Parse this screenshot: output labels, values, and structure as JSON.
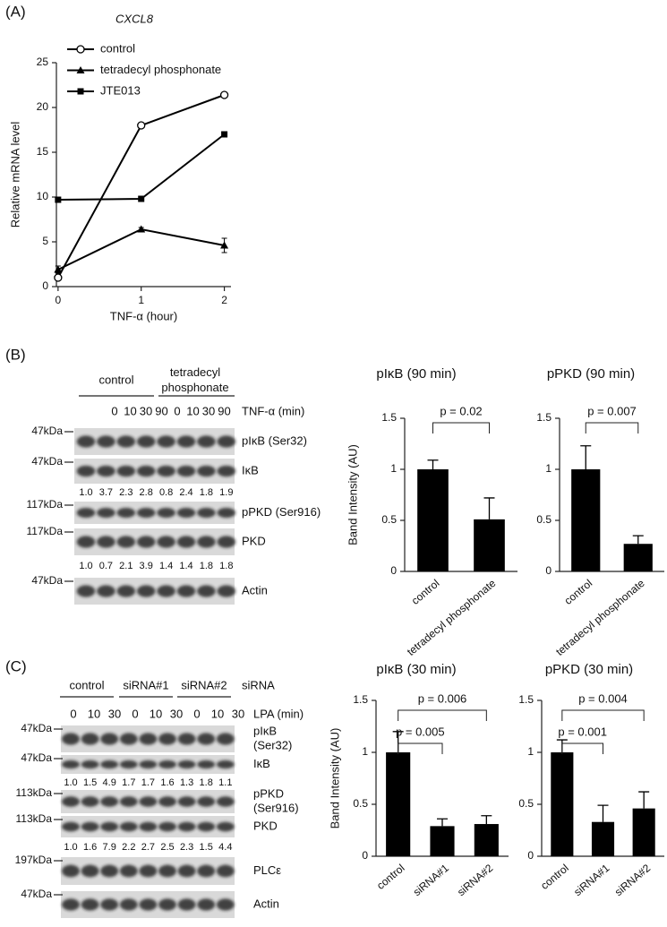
{
  "panels": [
    "(A)",
    "(B)",
    "(C)"
  ],
  "chart_data": [
    {
      "type": "line",
      "title": "CXCL8",
      "x": [
        0,
        1,
        2
      ],
      "xlim": [
        -0.02,
        2.08
      ],
      "xticks": [
        0,
        1,
        2
      ],
      "ylim": [
        0,
        25
      ],
      "yticks": [
        0,
        5,
        10,
        15,
        20,
        25
      ],
      "xlabel": "TNF-α (hour)",
      "ylabel": "Relative mRNA level",
      "legend": "upper left",
      "series": [
        {
          "name": "control",
          "color": "#000000",
          "marker": "circle-open",
          "values": [
            1.0,
            18.0,
            21.4
          ],
          "errors": [
            0.2,
            0.2,
            0.3
          ]
        },
        {
          "name": "tetradecyl phosphonate",
          "color": "#000000",
          "marker": "triangle",
          "values": [
            1.9,
            6.4,
            4.6
          ],
          "errors": [
            0.4,
            0.2,
            0.8
          ]
        },
        {
          "name": "JTE013",
          "color": "#000000",
          "marker": "square",
          "values": [
            9.7,
            9.8,
            17.0
          ],
          "errors": [
            0.1,
            0.2,
            0.2
          ]
        }
      ]
    },
    {
      "type": "bar",
      "title": "pIκB (90 min)",
      "categories": [
        "control",
        "tetradecyl phosphonate"
      ],
      "values": [
        1.0,
        0.51
      ],
      "errors": [
        0.09,
        0.21
      ],
      "color": "#000000",
      "ylim": [
        0,
        1.5
      ],
      "yticks": [
        0,
        0.5,
        1,
        1.5
      ],
      "ylabel": "Band Intensity (AU)",
      "annotations": [
        "p = 0.02"
      ]
    },
    {
      "type": "bar",
      "title": "pPKD (90 min)",
      "categories": [
        "control",
        "tetradecyl phosphonate"
      ],
      "values": [
        1.0,
        0.27
      ],
      "errors": [
        0.23,
        0.08
      ],
      "color": "#000000",
      "ylim": [
        0,
        1.5
      ],
      "yticks": [
        0,
        0.5,
        1,
        1.5
      ],
      "annotations": [
        "p = 0.007"
      ]
    },
    {
      "type": "bar",
      "title": "pIκB (30 min)",
      "categories": [
        "control",
        "siRNA#1",
        "siRNA#2"
      ],
      "values": [
        1.0,
        0.29,
        0.31
      ],
      "errors": [
        0.2,
        0.07,
        0.08
      ],
      "color": "#000000",
      "ylim": [
        0,
        1.5
      ],
      "yticks": [
        0,
        0.5,
        1,
        1.5
      ],
      "ylabel": "Band Intensity (AU)",
      "annotations": [
        "p = 0.006",
        "p = 0.005"
      ]
    },
    {
      "type": "bar",
      "title": "pPKD (30 min)",
      "categories": [
        "control",
        "siRNA#1",
        "siRNA#2"
      ],
      "values": [
        1.0,
        0.33,
        0.46
      ],
      "errors": [
        0.12,
        0.16,
        0.16
      ],
      "color": "#000000",
      "ylim": [
        0,
        1.5
      ],
      "yticks": [
        0,
        0.5,
        1,
        1.5
      ],
      "annotations": [
        "p = 0.004",
        "p = 0.001"
      ]
    }
  ],
  "blots": [
    {
      "groups": [
        [
          "control"
        ],
        [
          "tetradecyl",
          "phosphonate"
        ]
      ],
      "treatment": "TNF-α (min)",
      "lanes": [
        "0",
        "10",
        "30",
        "90",
        "0",
        "10",
        "30",
        "90"
      ],
      "rows": [
        {
          "marker": "47kDa",
          "label": [
            "pIκB (Ser32)"
          ]
        },
        {
          "marker": "47kDa",
          "label": [
            "IκB"
          ]
        },
        {
          "quant": [
            "1.0",
            "3.7",
            "2.3",
            "2.8",
            "0.8",
            "2.4",
            "1.8",
            "1.9"
          ]
        },
        {
          "marker": "117kDa",
          "label": [
            "pPKD (Ser916)"
          ]
        },
        {
          "marker": "117kDa",
          "label": [
            "PKD"
          ]
        },
        {
          "quant": [
            "1.0",
            "0.7",
            "2.1",
            "3.9",
            "1.4",
            "1.4",
            "1.8",
            "1.8"
          ]
        },
        {
          "marker": "47kDa",
          "label": [
            "Actin"
          ]
        }
      ]
    },
    {
      "groups": [
        [
          "control"
        ],
        [
          "siRNA#1"
        ],
        [
          "siRNA#2"
        ]
      ],
      "group_title": "siRNA",
      "treatment": "LPA (min)",
      "lanes": [
        "0",
        "10",
        "30",
        "0",
        "10",
        "30",
        "0",
        "10",
        "30"
      ],
      "rows": [
        {
          "marker": "47kDa",
          "label": [
            "pIκB",
            "(Ser32)"
          ]
        },
        {
          "marker": "47kDa",
          "label": [
            "IκB"
          ]
        },
        {
          "quant": [
            "1.0",
            "1.5",
            "4.9",
            "1.7",
            "1.7",
            "1.6",
            "1.3",
            "1.8",
            "1.1"
          ]
        },
        {
          "marker": "113kDa",
          "label": [
            "pPKD",
            "(Ser916)"
          ]
        },
        {
          "marker": "113kDa",
          "label": [
            "PKD"
          ]
        },
        {
          "quant": [
            "1.0",
            "1.6",
            "7.9",
            "2.2",
            "2.7",
            "2.5",
            "2.3",
            "1.5",
            "4.4"
          ]
        },
        {
          "marker": "197kDa",
          "label": [
            "PLCε"
          ]
        },
        {
          "marker": "47kDa",
          "label": [
            "Actin"
          ]
        }
      ]
    }
  ]
}
